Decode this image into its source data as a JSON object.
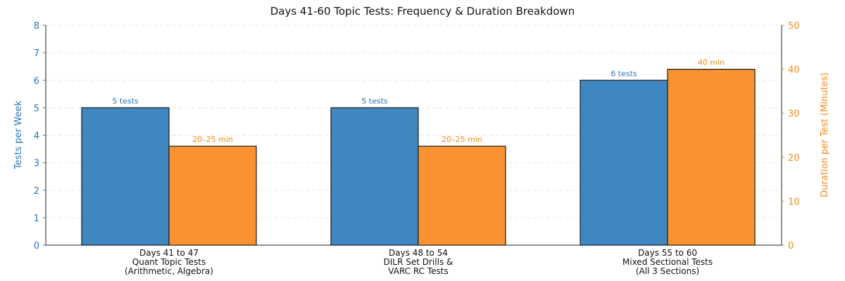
{
  "chart_data": {
    "type": "bar",
    "title": "Days 41-60 Topic Tests: Frequency & Duration Breakdown",
    "categories": [
      [
        "Days 41 to 47",
        "Quant Topic Tests",
        "(Arithmetic, Algebra)"
      ],
      [
        "Days 48 to 54",
        "DILR Set Drills &",
        "VARC RC Tests"
      ],
      [
        "Days 55 to 60",
        "Mixed Sectional Tests",
        "(All 3 Sections)"
      ]
    ],
    "series": [
      {
        "name": "Tests per Week",
        "axis": "left",
        "color": "#3f87c0",
        "values": [
          5,
          5,
          6
        ],
        "labels": [
          "5 tests",
          "5 tests",
          "6 tests"
        ]
      },
      {
        "name": "Duration per Test (Minutes)",
        "axis": "right",
        "color": "#fb9232",
        "values": [
          22.5,
          22.5,
          40
        ],
        "labels": [
          "20–25 min",
          "20–25 min",
          "40 min"
        ]
      }
    ],
    "ylabel_left": "Tests per Week",
    "ylabel_right": "Duration per Test (Minutes)",
    "ylim_left": [
      0,
      8
    ],
    "yticks_left": [
      0,
      1,
      2,
      3,
      4,
      5,
      6,
      7,
      8
    ],
    "ylim_right": [
      0,
      50
    ],
    "yticks_right": [
      0,
      10,
      20,
      30,
      40,
      50
    ],
    "grid": true,
    "left_axis_color": "#2e75b6",
    "right_axis_color": "#f28a1a"
  }
}
